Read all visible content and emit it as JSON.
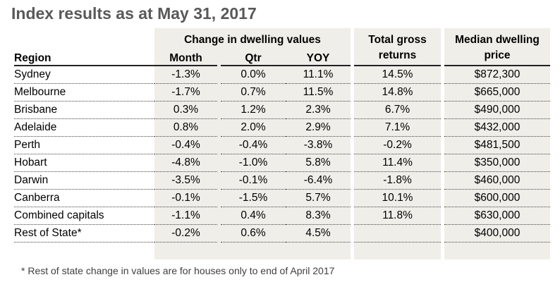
{
  "title": "Index results as at May 31, 2017",
  "chart_data": {
    "type": "table",
    "group_header": "Change in dwelling values",
    "columns": [
      "Region",
      "Month",
      "Qtr",
      "YOY",
      "Total gross returns",
      "Median dwelling price"
    ],
    "headers": {
      "region": "Region",
      "month": "Month",
      "qtr": "Qtr",
      "yoy": "YOY",
      "total_1": "Total gross",
      "total_2": "returns",
      "median_1": "Median dwelling",
      "median_2": "price"
    },
    "rows": [
      [
        "Sydney",
        "-1.3%",
        "0.0%",
        "11.1%",
        "14.5%",
        "$872,300"
      ],
      [
        "Melbourne",
        "-1.7%",
        "0.7%",
        "11.5%",
        "14.8%",
        "$665,000"
      ],
      [
        "Brisbane",
        "0.3%",
        "1.2%",
        "2.3%",
        "6.7%",
        "$490,000"
      ],
      [
        "Adelaide",
        "0.8%",
        "2.0%",
        "2.9%",
        "7.1%",
        "$432,000"
      ],
      [
        "Perth",
        "-0.4%",
        "-0.4%",
        "-3.8%",
        "-0.2%",
        "$481,500"
      ],
      [
        "Hobart",
        "-4.8%",
        "-1.0%",
        "5.8%",
        "11.4%",
        "$350,000"
      ],
      [
        "Darwin",
        "-3.5%",
        "-0.1%",
        "-6.4%",
        "-1.8%",
        "$460,000"
      ],
      [
        "Canberra",
        "-0.1%",
        "-1.5%",
        "5.7%",
        "10.1%",
        "$600,000"
      ],
      [
        "Combined capitals",
        "-1.1%",
        "0.4%",
        "8.3%",
        "11.8%",
        "$630,000"
      ],
      [
        "Rest of State*",
        "-0.2%",
        "0.6%",
        "4.5%",
        "",
        "$400,000"
      ]
    ]
  },
  "footnote": "* Rest of state change in values are for houses only to end of April 2017"
}
